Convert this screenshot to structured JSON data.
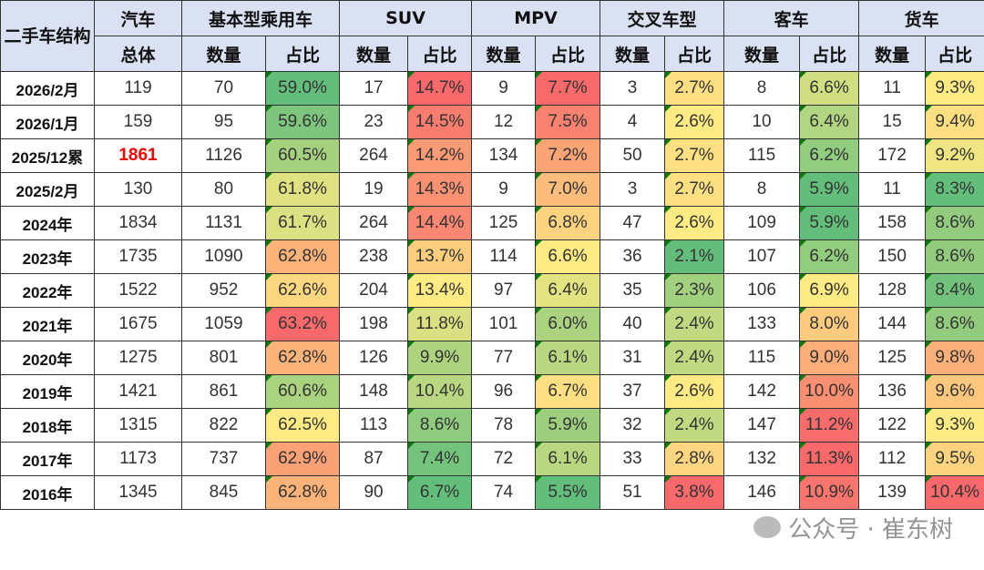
{
  "header": {
    "corner": "二手车结构",
    "groups": [
      "汽车",
      "基本型乘用车",
      "SUV",
      "MPV",
      "交叉车型",
      "客车",
      "货车"
    ],
    "total_label": "总体",
    "count_label": "数量",
    "share_label": "占比"
  },
  "rows": [
    {
      "label": "2026/2月",
      "total": "119",
      "vals": [
        [
          "70",
          "59.0%"
        ],
        [
          "17",
          "14.7%"
        ],
        [
          "9",
          "7.7%"
        ],
        [
          "3",
          "2.7%"
        ],
        [
          "8",
          "6.6%"
        ],
        [
          "11",
          "9.3%"
        ]
      ]
    },
    {
      "label": "2026/1月",
      "total": "159",
      "vals": [
        [
          "95",
          "59.6%"
        ],
        [
          "23",
          "14.5%"
        ],
        [
          "12",
          "7.5%"
        ],
        [
          "4",
          "2.6%"
        ],
        [
          "10",
          "6.4%"
        ],
        [
          "15",
          "9.4%"
        ]
      ]
    },
    {
      "label": "2025/12累",
      "total": "1861",
      "highlight": true,
      "vals": [
        [
          "1126",
          "60.5%"
        ],
        [
          "264",
          "14.2%"
        ],
        [
          "134",
          "7.2%"
        ],
        [
          "50",
          "2.7%"
        ],
        [
          "115",
          "6.2%"
        ],
        [
          "172",
          "9.2%"
        ]
      ]
    },
    {
      "label": "2025/2月",
      "total": "130",
      "vals": [
        [
          "80",
          "61.8%"
        ],
        [
          "19",
          "14.3%"
        ],
        [
          "9",
          "7.0%"
        ],
        [
          "3",
          "2.7%"
        ],
        [
          "8",
          "5.9%"
        ],
        [
          "11",
          "8.3%"
        ]
      ]
    },
    {
      "label": "2024年",
      "total": "1834",
      "vals": [
        [
          "1131",
          "61.7%"
        ],
        [
          "264",
          "14.4%"
        ],
        [
          "125",
          "6.8%"
        ],
        [
          "47",
          "2.6%"
        ],
        [
          "109",
          "5.9%"
        ],
        [
          "158",
          "8.6%"
        ]
      ]
    },
    {
      "label": "2023年",
      "total": "1735",
      "vals": [
        [
          "1090",
          "62.8%"
        ],
        [
          "238",
          "13.7%"
        ],
        [
          "114",
          "6.6%"
        ],
        [
          "36",
          "2.1%"
        ],
        [
          "107",
          "6.2%"
        ],
        [
          "150",
          "8.6%"
        ]
      ]
    },
    {
      "label": "2022年",
      "total": "1522",
      "vals": [
        [
          "952",
          "62.6%"
        ],
        [
          "204",
          "13.4%"
        ],
        [
          "97",
          "6.4%"
        ],
        [
          "35",
          "2.3%"
        ],
        [
          "106",
          "6.9%"
        ],
        [
          "128",
          "8.4%"
        ]
      ]
    },
    {
      "label": "2021年",
      "total": "1675",
      "vals": [
        [
          "1059",
          "63.2%"
        ],
        [
          "198",
          "11.8%"
        ],
        [
          "101",
          "6.0%"
        ],
        [
          "40",
          "2.4%"
        ],
        [
          "133",
          "8.0%"
        ],
        [
          "144",
          "8.6%"
        ]
      ]
    },
    {
      "label": "2020年",
      "total": "1275",
      "vals": [
        [
          "801",
          "62.8%"
        ],
        [
          "126",
          "9.9%"
        ],
        [
          "77",
          "6.1%"
        ],
        [
          "31",
          "2.4%"
        ],
        [
          "115",
          "9.0%"
        ],
        [
          "125",
          "9.8%"
        ]
      ]
    },
    {
      "label": "2019年",
      "total": "1421",
      "vals": [
        [
          "861",
          "60.6%"
        ],
        [
          "148",
          "10.4%"
        ],
        [
          "96",
          "6.7%"
        ],
        [
          "37",
          "2.6%"
        ],
        [
          "142",
          "10.0%"
        ],
        [
          "136",
          "9.6%"
        ]
      ]
    },
    {
      "label": "2018年",
      "total": "1315",
      "vals": [
        [
          "822",
          "62.5%"
        ],
        [
          "113",
          "8.6%"
        ],
        [
          "78",
          "5.9%"
        ],
        [
          "32",
          "2.4%"
        ],
        [
          "147",
          "11.2%"
        ],
        [
          "122",
          "9.3%"
        ]
      ]
    },
    {
      "label": "2017年",
      "total": "1173",
      "vals": [
        [
          "737",
          "62.9%"
        ],
        [
          "87",
          "7.4%"
        ],
        [
          "72",
          "6.1%"
        ],
        [
          "33",
          "2.8%"
        ],
        [
          "132",
          "11.3%"
        ],
        [
          "112",
          "9.5%"
        ]
      ]
    },
    {
      "label": "2016年",
      "total": "1345",
      "vals": [
        [
          "845",
          "62.8%"
        ],
        [
          "90",
          "6.7%"
        ],
        [
          "74",
          "5.5%"
        ],
        [
          "51",
          "3.8%"
        ],
        [
          "146",
          "10.9%"
        ],
        [
          "139",
          "10.4%"
        ]
      ]
    }
  ],
  "colors": {
    "low": "#63BE7B",
    "mid": "#FFEB84",
    "high": "#F8696B",
    "header_bg": "#D9E1F2",
    "highlight": "#FF0000"
  },
  "watermark": "公众号 · 崔东树"
}
